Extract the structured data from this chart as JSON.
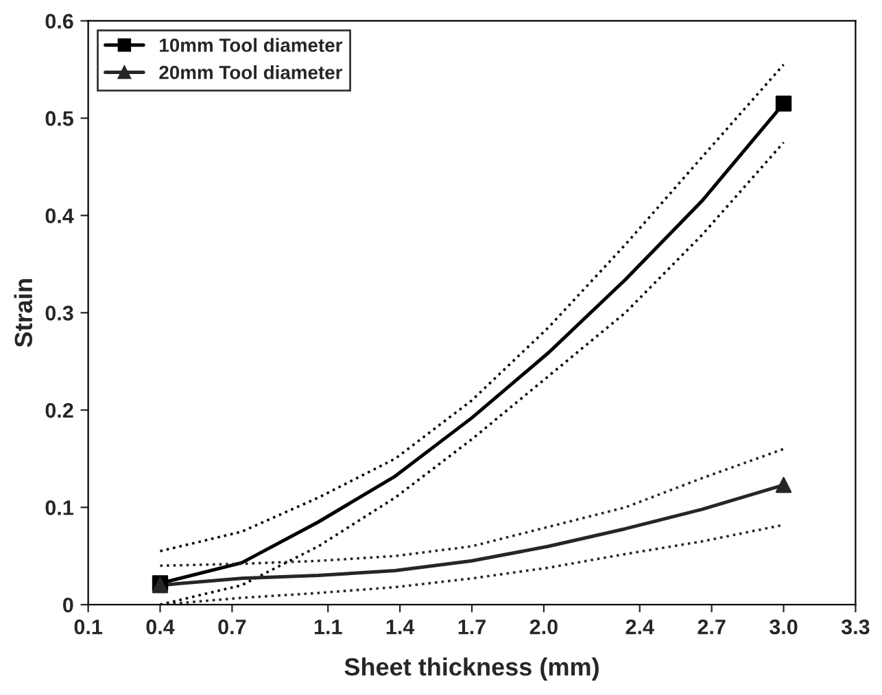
{
  "chart_data": {
    "type": "line",
    "xlabel": "Sheet thickness (mm)",
    "ylabel": "Strain",
    "x": [
      0.4,
      0.74,
      1.06,
      1.38,
      1.7,
      2.02,
      2.34,
      2.66,
      3.0
    ],
    "series": [
      {
        "color": "#000000",
        "line_style": "solid",
        "values": [
          0.022,
          0.043,
          0.085,
          0.132,
          0.192,
          0.259,
          0.334,
          0.415,
          0.515
        ]
      },
      {
        "color": "#000000",
        "line_style": "dotted",
        "values": [
          0.0,
          0.02,
          0.06,
          0.11,
          0.17,
          0.235,
          0.3,
          0.38,
          0.475
        ]
      },
      {
        "color": "#000000",
        "line_style": "dotted",
        "values": [
          0.055,
          0.075,
          0.11,
          0.15,
          0.21,
          0.285,
          0.37,
          0.46,
          0.555
        ]
      },
      {
        "name": "10mm Tool diameter",
        "type": "scatter",
        "color": "#000000",
        "marker": "square",
        "values": [
          0.022,
          null,
          null,
          null,
          null,
          null,
          null,
          null,
          0.515
        ]
      },
      {
        "color": "#262626",
        "line_style": "solid",
        "values": [
          0.02,
          0.027,
          0.03,
          0.035,
          0.045,
          0.06,
          0.078,
          0.098,
          0.123
        ]
      },
      {
        "color": "#262626",
        "line_style": "dotted",
        "values": [
          0.0,
          0.007,
          0.012,
          0.018,
          0.027,
          0.038,
          0.052,
          0.065,
          0.082
        ]
      },
      {
        "color": "#262626",
        "line_style": "dotted",
        "values": [
          0.04,
          0.042,
          0.045,
          0.05,
          0.06,
          0.08,
          0.1,
          0.13,
          0.16
        ]
      },
      {
        "name": "20mm Tool diameter",
        "type": "scatter",
        "color": "#262626",
        "marker": "triangle",
        "values": [
          0.02,
          null,
          null,
          null,
          null,
          null,
          null,
          null,
          0.123
        ]
      }
    ],
    "xlim": [
      0.1,
      3.3
    ],
    "xticks": [
      0.1,
      0.4,
      0.7,
      1.1,
      1.4,
      1.7,
      {
        "value": 2.0,
        "label": "2.0"
      },
      2.4,
      2.7,
      {
        "value": 3.0,
        "label": "3.0"
      },
      3.3
    ],
    "ylim": [
      0,
      0.6
    ],
    "yticks": [
      0,
      0.1,
      0.2,
      0.3,
      0.4,
      0.5,
      0.6
    ],
    "legend": "top left"
  }
}
